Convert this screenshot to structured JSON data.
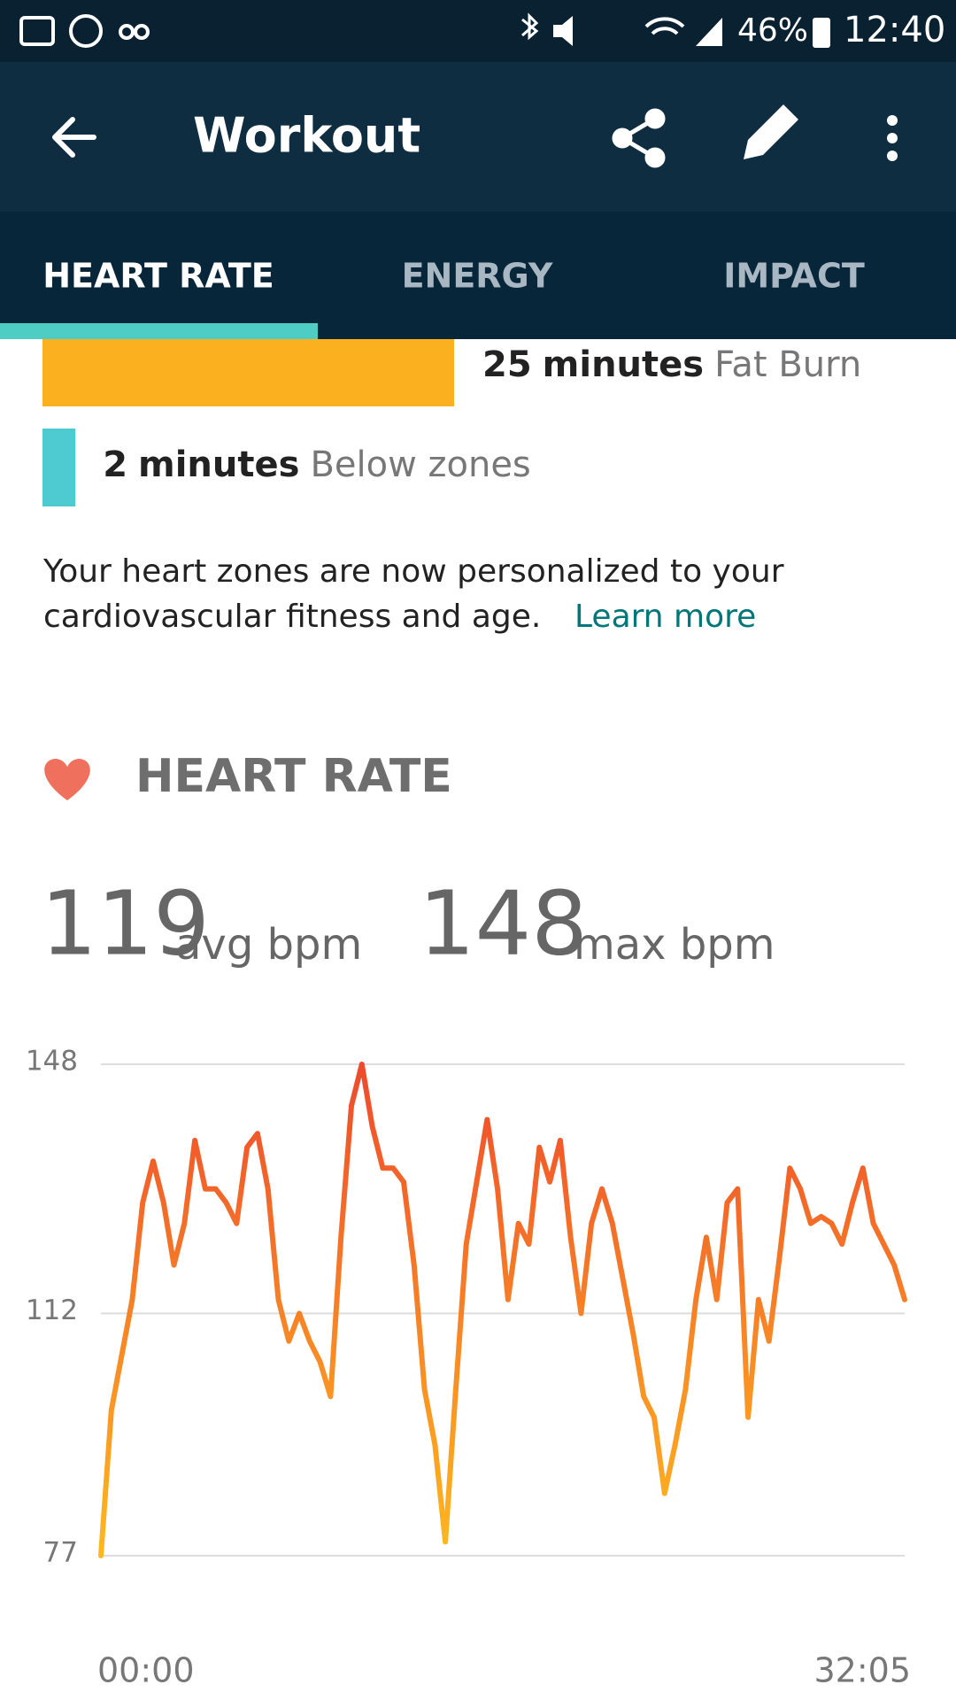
{
  "status_bar": {
    "battery": "46%",
    "time": "12:40"
  },
  "app_bar": {
    "title": "Workout"
  },
  "tabs": [
    "HEART RATE",
    "ENERGY",
    "IMPACT"
  ],
  "zones": [
    {
      "minutes": 25,
      "unit": "minutes",
      "name": "Fat Burn",
      "color": "#fbb01f"
    },
    {
      "minutes": 2,
      "unit": "minutes",
      "name": "Below zones",
      "color": "#4ecbd1"
    }
  ],
  "info": {
    "lines": [
      "Your heart zones are now personalized to your",
      "cardiovascular fitness and age."
    ],
    "link": "Learn more"
  },
  "section": {
    "title": "HEART RATE"
  },
  "stats": [
    {
      "value": 119,
      "label": "avg bpm"
    },
    {
      "value": 148,
      "label": "max bpm"
    }
  ],
  "chart_data": {
    "type": "line",
    "x": [
      0,
      25,
      50,
      75,
      100,
      125,
      150,
      175,
      200,
      225,
      250,
      275,
      300,
      325,
      350,
      375,
      400,
      425,
      450,
      475,
      500,
      525,
      550,
      575,
      600,
      625,
      650,
      675,
      700,
      725,
      750,
      775,
      800,
      825,
      850,
      875,
      900,
      925,
      950,
      975,
      1000,
      1025,
      1050,
      1075,
      1100,
      1125,
      1150,
      1175,
      1200,
      1225,
      1250,
      1275,
      1300,
      1325,
      1350,
      1375,
      1400,
      1425,
      1450,
      1475,
      1500,
      1525,
      1550,
      1575,
      1600,
      1625,
      1650,
      1675,
      1700,
      1725,
      1750,
      1775,
      1800,
      1825,
      1850,
      1875,
      1900,
      1925
    ],
    "series": [
      {
        "name": "Heart rate",
        "colors": [
          "#ee4a2d",
          "#ffb81f"
        ],
        "values": [
          77,
          98,
          106,
          114,
          128,
          134,
          128,
          119,
          125,
          137,
          130,
          130,
          128,
          125,
          136,
          138,
          130,
          114,
          108,
          112,
          108,
          105,
          100,
          123,
          142,
          148,
          139,
          133,
          133,
          131,
          119,
          101,
          93,
          79,
          101,
          122,
          131,
          140,
          130,
          114,
          125,
          122,
          136,
          131,
          137,
          123,
          112,
          125,
          130,
          125,
          117,
          109,
          100,
          97,
          86,
          93,
          101,
          114,
          123,
          114,
          128,
          130,
          97,
          114,
          108,
          120,
          133,
          130,
          125,
          126,
          125,
          122,
          128,
          133,
          125,
          122,
          119,
          114
        ]
      }
    ],
    "xlim": [
      0,
      1925
    ],
    "xticks": [
      {
        "value": 0,
        "label": "00:00"
      },
      {
        "value": 1925,
        "label": "32:05"
      }
    ],
    "ylim": [
      77,
      148
    ],
    "yticks": [
      77,
      112,
      148
    ],
    "grid": true
  }
}
